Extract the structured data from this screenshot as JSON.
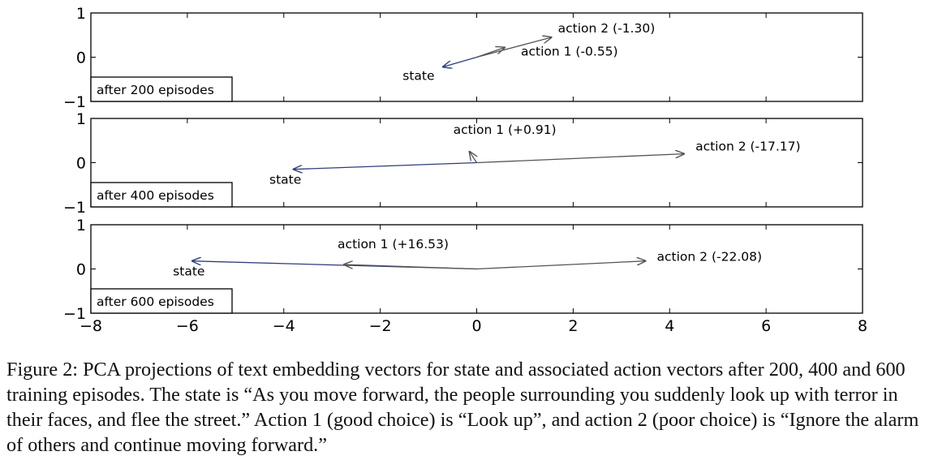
{
  "chart_data": {
    "type": "vector-plot",
    "shared_x_axis": {
      "xlim": [
        -8,
        8
      ],
      "ticks": [
        "−8",
        "−6",
        "−4",
        "−2",
        "0",
        "2",
        "4",
        "6",
        "8"
      ],
      "tick_values": [
        -8,
        -6,
        -4,
        -2,
        0,
        2,
        4,
        6,
        8
      ]
    },
    "panels": [
      {
        "label": "after 200 episodes",
        "ylim": [
          -1,
          1
        ],
        "yticks": [
          "1",
          "0",
          "−1"
        ],
        "ytick_values": [
          1,
          0,
          -1
        ],
        "vectors": [
          {
            "name": "state",
            "label": "state",
            "end": [
              -0.7,
              -0.22
            ],
            "color": "#2e3f77"
          },
          {
            "name": "action1",
            "label": "action 1 (-0.55)",
            "end": [
              0.58,
              0.22
            ],
            "color": "#545454"
          },
          {
            "name": "action2",
            "label": "action 2 (-1.30)",
            "end": [
              1.55,
              0.45
            ],
            "color": "#545454"
          }
        ]
      },
      {
        "label": "after 400 episodes",
        "ylim": [
          -1,
          1
        ],
        "yticks": [
          "1",
          "0",
          "−1"
        ],
        "ytick_values": [
          1,
          0,
          -1
        ],
        "vectors": [
          {
            "name": "state",
            "label": "state",
            "end": [
              -3.8,
              -0.15
            ],
            "color": "#2e3f77"
          },
          {
            "name": "action1",
            "label": "action 1 (+0.91)",
            "end": [
              -0.15,
              0.25
            ],
            "color": "#545454"
          },
          {
            "name": "action2",
            "label": "action 2 (-17.17)",
            "end": [
              4.3,
              0.2
            ],
            "color": "#545454"
          }
        ]
      },
      {
        "label": "after 600 episodes",
        "ylim": [
          -1,
          1
        ],
        "yticks": [
          "1",
          "0",
          "−1"
        ],
        "ytick_values": [
          1,
          0,
          -1
        ],
        "vectors": [
          {
            "name": "state",
            "label": "state",
            "end": [
              -5.9,
              0.18
            ],
            "color": "#2e3f77"
          },
          {
            "name": "action1",
            "label": "action 1 (+16.53)",
            "end": [
              -2.75,
              0.1
            ],
            "color": "#545454"
          },
          {
            "name": "action2",
            "label": "action 2 (-22.08)",
            "end": [
              3.5,
              0.18
            ],
            "color": "#545454"
          }
        ]
      }
    ]
  },
  "caption": {
    "figure_label": "Figure 2:",
    "text": "PCA projections of text embedding vectors for state and associated action vectors after 200, 400 and 600 training episodes. The state is “As you move forward, the people surrounding you suddenly look up with terror in their faces, and flee the street.” Action 1 (good choice) is “Look up”, and action 2 (poor choice) is “Ignore the alarm of others and continue moving forward.”"
  }
}
